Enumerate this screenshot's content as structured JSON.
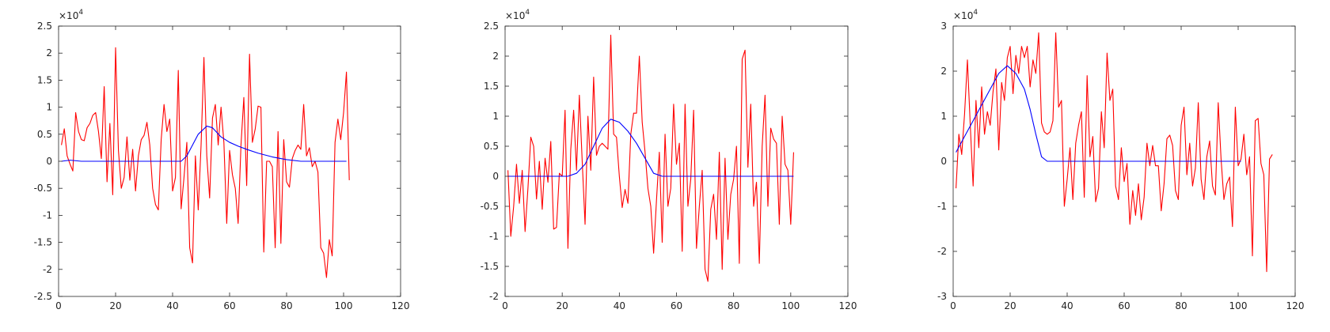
{
  "figure": {
    "background": "#ffffff",
    "axis_color": "#262626"
  },
  "chart_data": [
    {
      "type": "line",
      "title": "",
      "xlabel": "",
      "ylabel": "",
      "xlim": [
        0,
        120
      ],
      "ylim": [
        -2.5,
        2.5
      ],
      "xticks": [
        0,
        20,
        40,
        60,
        80,
        100,
        120
      ],
      "yticks": [
        -2.5,
        -2,
        -1.5,
        -1,
        -0.5,
        0,
        0.5,
        1,
        1.5,
        2,
        2.5
      ],
      "ytick_labels": [
        "-2.5",
        "-2",
        "-1.5",
        "-1",
        "-0.5",
        "0",
        "0.5",
        "1",
        "1.5",
        "2",
        "2.5"
      ],
      "y_multiplier": "×10",
      "y_multiplier_exp": "4",
      "grid": false,
      "legend": "none",
      "series": [
        {
          "color": "#ff0000",
          "x_start": 1,
          "x_step": 1,
          "values": [
            0.3,
            0.6,
            0.1,
            -0.05,
            -0.18,
            0.9,
            0.55,
            0.4,
            0.38,
            0.62,
            0.7,
            0.85,
            0.9,
            0.55,
            0.05,
            1.38,
            -0.38,
            0.7,
            -0.62,
            2.1,
            0.2,
            -0.5,
            -0.3,
            0.45,
            -0.35,
            0.22,
            -0.55,
            0.1,
            0.4,
            0.48,
            0.72,
            0.3,
            -0.5,
            -0.8,
            -0.9,
            0.4,
            1.05,
            0.55,
            0.78,
            -0.55,
            -0.3,
            1.68,
            -0.88,
            -0.3,
            0.35,
            -1.6,
            -1.88,
            0.1,
            -0.9,
            0.3,
            1.92,
            0.1,
            -0.68,
            0.8,
            1.05,
            0.3,
            1.0,
            0.35,
            -1.15,
            0.2,
            -0.25,
            -0.5,
            -1.15,
            0.3,
            1.18,
            -0.45,
            1.98,
            0.35,
            0.6,
            1.02,
            1.0,
            -1.68,
            0.0,
            0.0,
            -0.1,
            -1.6,
            0.55,
            -1.52,
            0.4,
            -0.38,
            -0.48,
            0.05,
            0.2,
            0.3,
            0.22,
            1.05,
            0.1,
            0.25,
            -0.1,
            0.0,
            -0.2,
            -1.6,
            -1.7,
            -2.15,
            -1.45,
            -1.75,
            0.35,
            0.78,
            0.4,
            0.9,
            1.65,
            -0.35
          ]
        },
        {
          "color": "#0000ff",
          "points": [
            [
              1,
              0.0
            ],
            [
              4,
              0.02
            ],
            [
              8,
              0.0
            ],
            [
              43,
              0.0
            ],
            [
              45,
              0.1
            ],
            [
              47,
              0.3
            ],
            [
              49,
              0.5
            ],
            [
              52,
              0.65
            ],
            [
              54,
              0.62
            ],
            [
              57,
              0.45
            ],
            [
              60,
              0.35
            ],
            [
              63,
              0.28
            ],
            [
              66,
              0.22
            ],
            [
              70,
              0.15
            ],
            [
              75,
              0.08
            ],
            [
              80,
              0.03
            ],
            [
              85,
              0.0
            ],
            [
              101,
              0.0
            ]
          ]
        }
      ]
    },
    {
      "type": "line",
      "title": "",
      "xlabel": "",
      "ylabel": "",
      "xlim": [
        0,
        120
      ],
      "ylim": [
        -2,
        2.5
      ],
      "xticks": [
        0,
        20,
        40,
        60,
        80,
        100,
        120
      ],
      "yticks": [
        -2,
        -1.5,
        -1,
        -0.5,
        0,
        0.5,
        1,
        1.5,
        2,
        2.5
      ],
      "ytick_labels": [
        "-2",
        "-1.5",
        "-1",
        "-0.5",
        "0",
        "0.5",
        "1",
        "1.5",
        "2",
        "2.5"
      ],
      "y_multiplier": "×10",
      "y_multiplier_exp": "4",
      "grid": false,
      "legend": "none",
      "series": [
        {
          "color": "#ff0000",
          "x_start": 1,
          "x_step": 1,
          "values": [
            0.1,
            -1.0,
            -0.5,
            0.2,
            -0.45,
            0.1,
            -0.92,
            -0.2,
            0.65,
            0.5,
            -0.38,
            0.25,
            -0.55,
            0.3,
            -0.1,
            0.58,
            -0.88,
            -0.85,
            0.05,
            0.0,
            1.1,
            -1.2,
            0.45,
            1.1,
            0.1,
            1.35,
            0.25,
            -0.8,
            1.0,
            0.1,
            1.65,
            0.35,
            0.5,
            0.55,
            0.5,
            0.45,
            2.35,
            0.7,
            0.65,
            0.0,
            -0.52,
            -0.22,
            -0.45,
            0.7,
            1.05,
            1.05,
            2.0,
            0.9,
            0.4,
            -0.2,
            -0.5,
            -1.28,
            -0.4,
            0.4,
            -1.1,
            0.7,
            -0.5,
            -0.2,
            1.2,
            0.2,
            0.55,
            -1.25,
            1.2,
            -0.5,
            -0.05,
            1.1,
            -1.2,
            -0.5,
            0.1,
            -1.55,
            -1.75,
            -0.55,
            -0.3,
            -1.05,
            0.4,
            -1.55,
            0.3,
            -1.05,
            -0.3,
            -0.05,
            0.5,
            -1.45,
            1.95,
            2.1,
            0.15,
            1.2,
            -0.5,
            -0.1,
            -1.45,
            0.5,
            1.35,
            -0.5,
            0.8,
            0.62,
            0.55,
            -0.8,
            1.0,
            0.2,
            0.1,
            -0.8,
            0.4
          ]
        },
        {
          "color": "#0000ff",
          "points": [
            [
              1,
              0.0
            ],
            [
              22,
              0.0
            ],
            [
              25,
              0.05
            ],
            [
              28,
              0.2
            ],
            [
              31,
              0.5
            ],
            [
              34,
              0.8
            ],
            [
              37,
              0.95
            ],
            [
              40,
              0.9
            ],
            [
              43,
              0.75
            ],
            [
              46,
              0.55
            ],
            [
              49,
              0.3
            ],
            [
              52,
              0.05
            ],
            [
              55,
              0.0
            ],
            [
              101,
              0.0
            ]
          ]
        }
      ]
    },
    {
      "type": "line",
      "title": "",
      "xlabel": "",
      "ylabel": "",
      "xlim": [
        0,
        120
      ],
      "ylim": [
        -3,
        3
      ],
      "xticks": [
        0,
        20,
        40,
        60,
        80,
        100,
        120
      ],
      "yticks": [
        -3,
        -2,
        -1,
        0,
        1,
        2,
        3
      ],
      "ytick_labels": [
        "-3",
        "-2",
        "-1",
        "0",
        "1",
        "2",
        "3"
      ],
      "y_multiplier": "×10",
      "y_multiplier_exp": "4",
      "grid": false,
      "legend": "none",
      "series": [
        {
          "color": "#ff0000",
          "x_start": 1,
          "x_step": 1,
          "values": [
            -0.6,
            0.6,
            0.15,
            1.05,
            2.25,
            0.8,
            -0.55,
            1.35,
            0.3,
            1.65,
            0.6,
            1.1,
            0.8,
            1.55,
            2.05,
            0.25,
            1.75,
            1.35,
            2.3,
            2.55,
            1.5,
            2.35,
            1.95,
            2.55,
            2.3,
            2.55,
            1.65,
            2.25,
            1.95,
            2.85,
            0.85,
            0.65,
            0.6,
            0.65,
            0.9,
            2.85,
            1.2,
            1.35,
            -1.0,
            -0.4,
            0.3,
            -0.85,
            0.4,
            0.8,
            1.1,
            -0.8,
            1.9,
            0.1,
            0.55,
            -0.9,
            -0.6,
            1.1,
            0.3,
            2.4,
            1.35,
            1.6,
            -0.55,
            -0.85,
            0.3,
            -0.45,
            -0.05,
            -1.4,
            -0.65,
            -1.2,
            -0.5,
            -1.3,
            -0.8,
            0.4,
            -0.1,
            0.35,
            -0.1,
            -0.1,
            -1.1,
            -0.5,
            0.5,
            0.58,
            0.35,
            -0.65,
            -0.85,
            0.8,
            1.2,
            -0.3,
            0.4,
            -0.55,
            -0.15,
            1.3,
            -0.4,
            -0.85,
            0.1,
            0.45,
            -0.55,
            -0.75,
            1.3,
            0.05,
            -0.85,
            -0.5,
            -0.35,
            -1.45,
            1.2,
            -0.1,
            0.05,
            0.6,
            -0.3,
            0.1,
            -2.1,
            0.9,
            0.95,
            -0.05,
            -0.3,
            -2.45,
            0.05,
            0.15
          ]
        },
        {
          "color": "#0000ff",
          "points": [
            [
              1,
              0.2
            ],
            [
              4,
              0.55
            ],
            [
              7,
              0.9
            ],
            [
              10,
              1.25
            ],
            [
              13,
              1.6
            ],
            [
              16,
              1.95
            ],
            [
              19,
              2.12
            ],
            [
              22,
              1.95
            ],
            [
              25,
              1.6
            ],
            [
              27,
              1.15
            ],
            [
              29,
              0.6
            ],
            [
              31,
              0.1
            ],
            [
              33,
              0.0
            ],
            [
              101,
              0.0
            ]
          ]
        }
      ]
    }
  ]
}
